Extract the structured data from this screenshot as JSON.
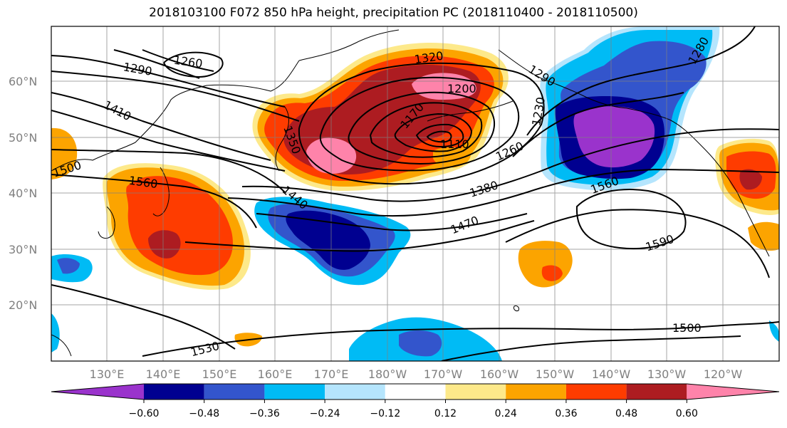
{
  "title": "2018103100 F072 850 hPa height, precipitation PC (2018110400 - 2018110500)",
  "map": {
    "lat_labels": [
      "60°N",
      "50°N",
      "40°N",
      "30°N",
      "20°N"
    ],
    "lon_labels": [
      "130°E",
      "140°E",
      "150°E",
      "160°E",
      "170°E",
      "180°W",
      "170°W",
      "160°W",
      "150°W",
      "140°W",
      "130°W",
      "120°W"
    ],
    "contour_labels": [
      "1260",
      "1290",
      "1410",
      "1500",
      "1560",
      "1350",
      "1320",
      "1200",
      "1170",
      "1290",
      "1230",
      "1110",
      "1140",
      "1260",
      "1440",
      "1380",
      "1470",
      "1560",
      "1590",
      "1280",
      "1530",
      "1500"
    ]
  },
  "colorbar": {
    "ticks": [
      "−0.60",
      "−0.48",
      "−0.36",
      "−0.24",
      "−0.12",
      "0.12",
      "0.24",
      "0.36",
      "0.48",
      "0.60"
    ],
    "colors": [
      "#9a33cc",
      "#000090",
      "#3355cc",
      "#00bbf5",
      "#b5e5fd",
      "#ffffff",
      "#fde98a",
      "#fca400",
      "#fe3c00",
      "#ad1c21",
      "#fe83aa"
    ]
  }
}
